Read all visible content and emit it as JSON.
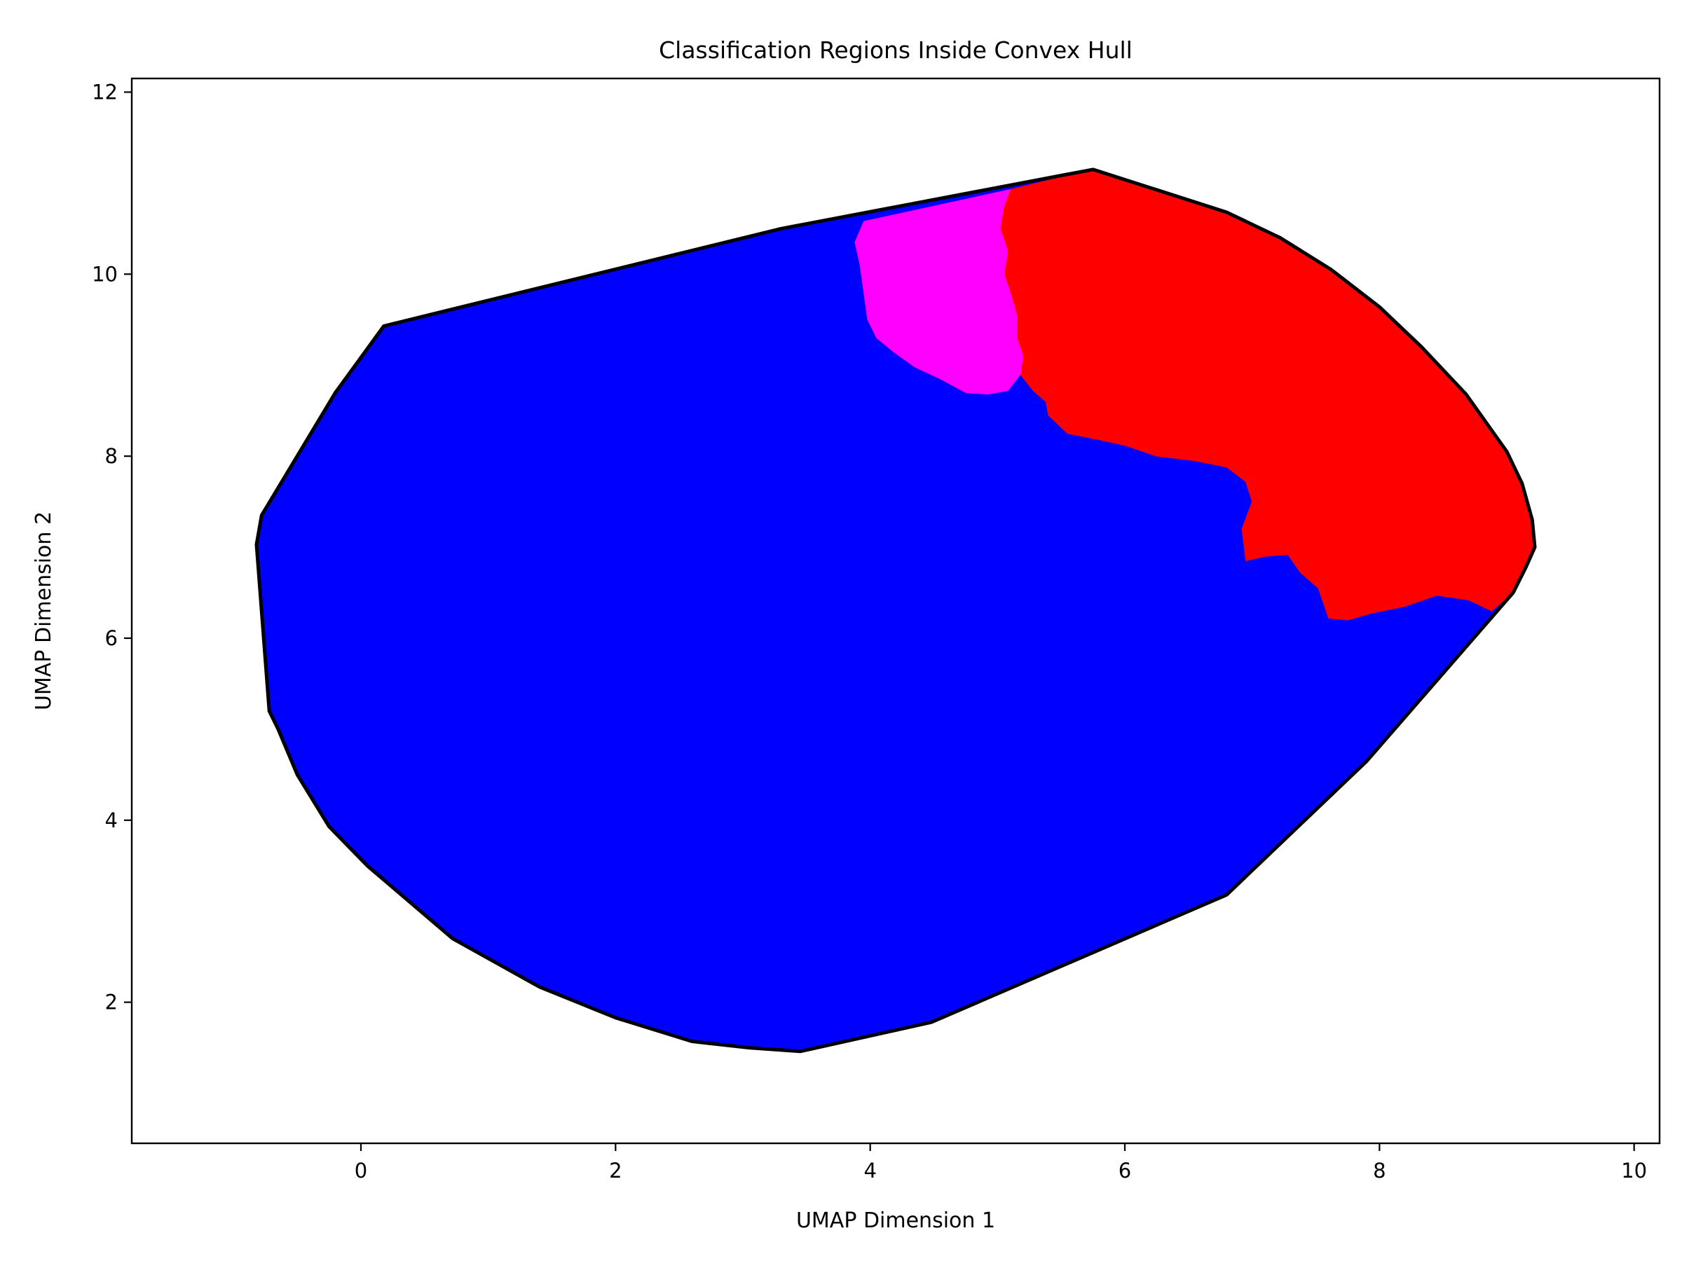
{
  "chart_data": {
    "type": "area",
    "title": "Classification Regions Inside Convex Hull",
    "xlabel": "UMAP Dimension 1",
    "ylabel": "UMAP Dimension 2",
    "xlim": [
      -1.8,
      10.2
    ],
    "ylim": [
      0.45,
      12.15
    ],
    "xticks": [
      0,
      2,
      4,
      6,
      8,
      10
    ],
    "yticks": [
      2,
      4,
      6,
      8,
      10,
      12
    ],
    "grid": false,
    "legend": "none",
    "hull": [
      [
        0.18,
        9.43
      ],
      [
        3.3,
        10.5
      ],
      [
        5.75,
        11.15
      ],
      [
        6.8,
        10.68
      ],
      [
        7.22,
        10.4
      ],
      [
        7.62,
        10.05
      ],
      [
        8.0,
        9.64
      ],
      [
        8.33,
        9.2
      ],
      [
        8.68,
        8.68
      ],
      [
        9.0,
        8.05
      ],
      [
        9.12,
        7.7
      ],
      [
        9.2,
        7.3
      ],
      [
        9.22,
        7.0
      ],
      [
        9.15,
        6.78
      ],
      [
        9.05,
        6.5
      ],
      [
        7.9,
        4.65
      ],
      [
        6.8,
        3.18
      ],
      [
        4.48,
        1.78
      ],
      [
        3.45,
        1.46
      ],
      [
        3.05,
        1.5
      ],
      [
        2.6,
        1.57
      ],
      [
        2.0,
        1.83
      ],
      [
        1.4,
        2.17
      ],
      [
        0.72,
        2.7
      ],
      [
        0.05,
        3.5
      ],
      [
        -0.25,
        3.93
      ],
      [
        -0.5,
        4.5
      ],
      [
        -0.65,
        5.0
      ],
      [
        -0.72,
        5.2
      ],
      [
        -0.82,
        7.03
      ],
      [
        -0.78,
        7.35
      ],
      [
        -0.2,
        8.7
      ]
    ],
    "hull_color": "#000000",
    "regions": [
      {
        "color": "#0000ff",
        "polygon": [
          [
            0.18,
            9.43
          ],
          [
            3.3,
            10.5
          ],
          [
            5.75,
            11.15
          ],
          [
            6.8,
            10.68
          ],
          [
            7.22,
            10.4
          ],
          [
            7.62,
            10.05
          ],
          [
            8.0,
            9.64
          ],
          [
            8.33,
            9.2
          ],
          [
            8.68,
            8.68
          ],
          [
            9.0,
            8.05
          ],
          [
            9.12,
            7.7
          ],
          [
            9.2,
            7.3
          ],
          [
            9.22,
            7.0
          ],
          [
            9.15,
            6.78
          ],
          [
            9.05,
            6.5
          ],
          [
            7.9,
            4.65
          ],
          [
            6.8,
            3.18
          ],
          [
            4.48,
            1.78
          ],
          [
            3.45,
            1.46
          ],
          [
            3.05,
            1.5
          ],
          [
            2.6,
            1.57
          ],
          [
            2.0,
            1.83
          ],
          [
            1.4,
            2.17
          ],
          [
            0.72,
            2.7
          ],
          [
            0.05,
            3.5
          ],
          [
            -0.25,
            3.93
          ],
          [
            -0.5,
            4.5
          ],
          [
            -0.65,
            5.0
          ],
          [
            -0.72,
            5.2
          ],
          [
            -0.82,
            7.03
          ],
          [
            -0.78,
            7.35
          ],
          [
            -0.2,
            8.7
          ]
        ]
      },
      {
        "color": "#ff0000",
        "polygon": [
          [
            5.1,
            10.93
          ],
          [
            5.75,
            11.15
          ],
          [
            6.8,
            10.68
          ],
          [
            7.22,
            10.4
          ],
          [
            7.62,
            10.05
          ],
          [
            8.0,
            9.64
          ],
          [
            8.33,
            9.2
          ],
          [
            8.68,
            8.68
          ],
          [
            9.0,
            8.05
          ],
          [
            9.12,
            7.7
          ],
          [
            9.2,
            7.3
          ],
          [
            9.22,
            7.0
          ],
          [
            9.15,
            6.78
          ],
          [
            9.05,
            6.5
          ],
          [
            8.88,
            6.3
          ],
          [
            8.7,
            6.42
          ],
          [
            8.45,
            6.47
          ],
          [
            8.2,
            6.35
          ],
          [
            7.95,
            6.28
          ],
          [
            7.75,
            6.2
          ],
          [
            7.6,
            6.22
          ],
          [
            7.52,
            6.55
          ],
          [
            7.38,
            6.72
          ],
          [
            7.28,
            6.92
          ],
          [
            7.1,
            6.9
          ],
          [
            6.95,
            6.85
          ],
          [
            6.92,
            7.2
          ],
          [
            7.0,
            7.5
          ],
          [
            6.95,
            7.72
          ],
          [
            6.8,
            7.88
          ],
          [
            6.55,
            7.95
          ],
          [
            6.25,
            8.0
          ],
          [
            6.0,
            8.12
          ],
          [
            5.8,
            8.18
          ],
          [
            5.55,
            8.25
          ],
          [
            5.4,
            8.45
          ],
          [
            5.38,
            8.6
          ],
          [
            5.28,
            8.72
          ],
          [
            5.18,
            8.9
          ],
          [
            5.2,
            9.1
          ],
          [
            5.15,
            9.3
          ],
          [
            5.15,
            9.55
          ],
          [
            5.1,
            9.8
          ],
          [
            5.05,
            10.0
          ],
          [
            5.08,
            10.25
          ],
          [
            5.02,
            10.5
          ],
          [
            5.05,
            10.75
          ]
        ]
      },
      {
        "color": "#ff00ff",
        "polygon": [
          [
            3.95,
            10.58
          ],
          [
            5.1,
            10.93
          ],
          [
            5.05,
            10.75
          ],
          [
            5.02,
            10.5
          ],
          [
            5.08,
            10.25
          ],
          [
            5.05,
            10.0
          ],
          [
            5.1,
            9.8
          ],
          [
            5.15,
            9.55
          ],
          [
            5.15,
            9.3
          ],
          [
            5.2,
            9.1
          ],
          [
            5.18,
            8.9
          ],
          [
            5.08,
            8.72
          ],
          [
            4.92,
            8.68
          ],
          [
            4.75,
            8.7
          ],
          [
            4.55,
            8.85
          ],
          [
            4.35,
            8.98
          ],
          [
            4.18,
            9.15
          ],
          [
            4.05,
            9.3
          ],
          [
            3.98,
            9.5
          ],
          [
            3.95,
            9.8
          ],
          [
            3.92,
            10.1
          ],
          [
            3.88,
            10.35
          ]
        ]
      }
    ]
  }
}
